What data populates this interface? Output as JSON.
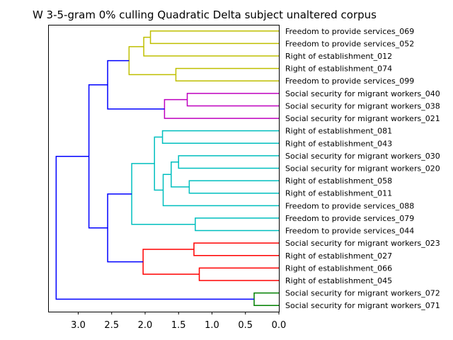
{
  "chart_data": {
    "type": "dendrogram",
    "title": "W 3-5-gram 0% culling Quadratic Delta subject unaltered corpus",
    "orientation": "left",
    "xlim": [
      3.45,
      0.0
    ],
    "xticks": [
      "3.0",
      "2.5",
      "2.0",
      "1.5",
      "1.0",
      "0.5",
      "0.0"
    ],
    "xtick_values": [
      3.0,
      2.5,
      2.0,
      1.5,
      1.0,
      0.5,
      0.0
    ],
    "colors": {
      "yellow": "#bfbf00",
      "magenta": "#bf00bf",
      "cyan": "#00bfbf",
      "red": "#ff0000",
      "green": "#008000",
      "blue": "#0000ff"
    },
    "leaves": [
      "Freedom to provide services_069",
      "Freedom to provide services_052",
      "Right of establishment_012",
      "Right of establishment_074",
      "Freedom to provide services_099",
      "Social security for migrant workers_040",
      "Social security for migrant workers_038",
      "Social security for migrant workers_021",
      "Right of establishment_081",
      "Right of establishment_043",
      "Social security for migrant workers_030",
      "Social security for migrant workers_020",
      "Right of establishment_058",
      "Right of establishment_011",
      "Freedom to provide services_088",
      "Freedom to provide services_079",
      "Freedom to provide services_044",
      "Social security for migrant workers_023",
      "Right of establishment_027",
      "Right of establishment_066",
      "Right of establishment_045",
      "Social security for migrant workers_072",
      "Social security for migrant workers_071"
    ],
    "merges": [
      {
        "id": "y1",
        "left": 0,
        "right": 1,
        "height": 1.92,
        "color": "yellow"
      },
      {
        "id": "y2",
        "left": "y1",
        "right": 2,
        "height": 2.02,
        "color": "yellow"
      },
      {
        "id": "y3",
        "left": 3,
        "right": 4,
        "height": 1.54,
        "color": "yellow"
      },
      {
        "id": "y4",
        "left": "y2",
        "right": "y3",
        "height": 2.24,
        "color": "yellow"
      },
      {
        "id": "m1",
        "left": 5,
        "right": 6,
        "height": 1.37,
        "color": "magenta"
      },
      {
        "id": "m2",
        "left": "m1",
        "right": 7,
        "height": 1.71,
        "color": "magenta"
      },
      {
        "id": "b1",
        "left": "y4",
        "right": "m2",
        "height": 2.56,
        "color": "blue"
      },
      {
        "id": "c1",
        "left": 8,
        "right": 9,
        "height": 1.74,
        "color": "cyan"
      },
      {
        "id": "c2",
        "left": 10,
        "right": 11,
        "height": 1.5,
        "color": "cyan"
      },
      {
        "id": "c3",
        "left": 12,
        "right": 13,
        "height": 1.34,
        "color": "cyan"
      },
      {
        "id": "c4",
        "left": "c2",
        "right": "c3",
        "height": 1.61,
        "color": "cyan"
      },
      {
        "id": "c5",
        "left": "c4",
        "right": 14,
        "height": 1.73,
        "color": "cyan"
      },
      {
        "id": "c6",
        "left": "c1",
        "right": "c5",
        "height": 1.86,
        "color": "cyan"
      },
      {
        "id": "c7",
        "left": 15,
        "right": 16,
        "height": 1.25,
        "color": "cyan"
      },
      {
        "id": "c8",
        "left": "c6",
        "right": "c7",
        "height": 2.2,
        "color": "cyan"
      },
      {
        "id": "r1",
        "left": 17,
        "right": 18,
        "height": 1.27,
        "color": "red"
      },
      {
        "id": "r2",
        "left": 19,
        "right": 20,
        "height": 1.19,
        "color": "red"
      },
      {
        "id": "r3",
        "left": "r1",
        "right": "r2",
        "height": 2.03,
        "color": "red"
      },
      {
        "id": "b2",
        "left": "c8",
        "right": "r3",
        "height": 2.56,
        "color": "blue"
      },
      {
        "id": "b3",
        "left": "b1",
        "right": "b2",
        "height": 2.84,
        "color": "blue"
      },
      {
        "id": "g1",
        "left": 21,
        "right": 22,
        "height": 0.37,
        "color": "green"
      },
      {
        "id": "b4",
        "left": "b3",
        "right": "g1",
        "height": 3.33,
        "color": "blue"
      }
    ]
  }
}
